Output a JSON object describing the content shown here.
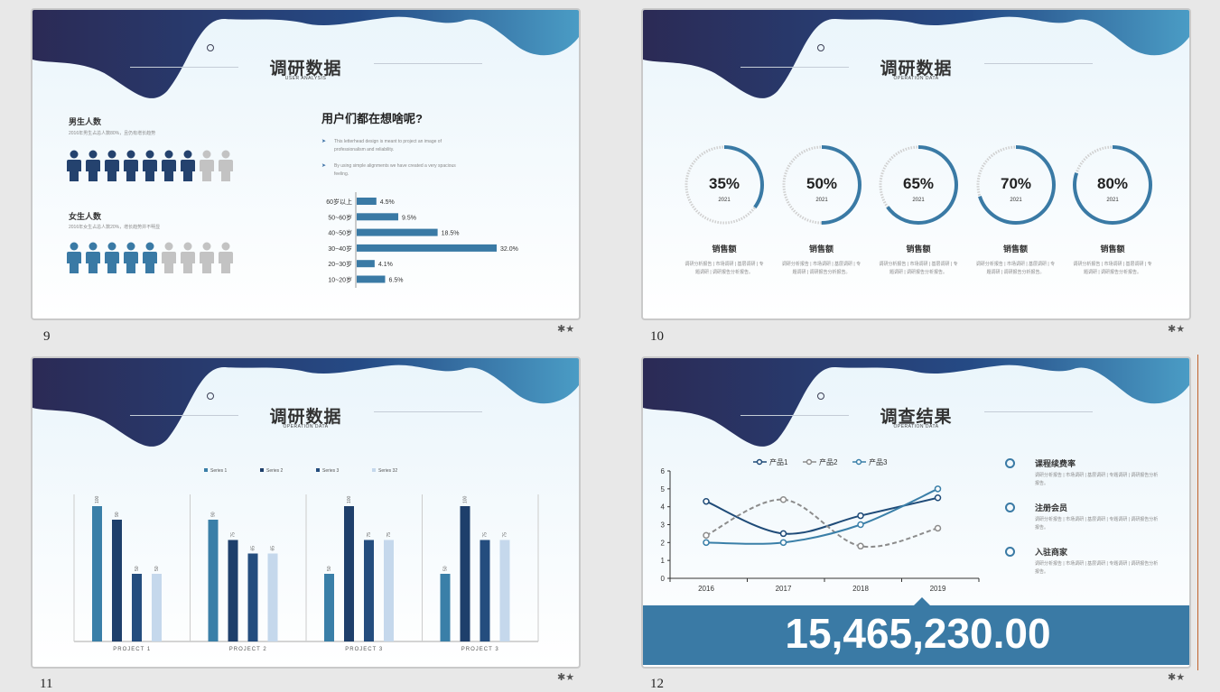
{
  "slide9": {
    "number": "9",
    "title": "调研数据",
    "subtitle": "USER ANALYSIS",
    "male": {
      "label": "男生人数",
      "desc": "2016年男生占总人数80%，且仍有增长趋势",
      "filled": 7,
      "total": 9
    },
    "female": {
      "label": "女生人数",
      "desc": "2016年女生占总人数20%，增长趋势并不明显",
      "filled": 5,
      "total": 9
    },
    "question": "用户们都在想啥呢?",
    "bullets": [
      "This letterhead design is meant to project an image of professionalism and reliability.",
      "By using simple alignments we have created a very spacious feeling."
    ],
    "chart_data": {
      "type": "bar",
      "orientation": "horizontal",
      "categories": [
        "60岁以上",
        "50~60岁",
        "40~50岁",
        "30~40岁",
        "20~30岁",
        "10~20岁"
      ],
      "values": [
        4.5,
        9.5,
        18.5,
        32.0,
        4.1,
        6.5
      ],
      "labels": [
        "4.5%",
        "9.5%",
        "18.5%",
        "32.0%",
        "4.1%",
        "6.5%"
      ],
      "color": "#3a7aa5"
    }
  },
  "slide10": {
    "number": "10",
    "title": "调研数据",
    "subtitle": "OPERATION DATA",
    "rings": [
      {
        "value": 35,
        "label": "35%",
        "year": "2021",
        "name": "销售额",
        "desc": "调研分析报告 | 市场调研 | 基层调研 | 专题调研 | 调研报告分析报告。"
      },
      {
        "value": 50,
        "label": "50%",
        "year": "2021",
        "name": "销售额",
        "desc": "调研分析报告 | 市场调研 | 基层调研 | 专题调研 | 调研报告分析报告。"
      },
      {
        "value": 65,
        "label": "65%",
        "year": "2021",
        "name": "销售额",
        "desc": "调研分析报告 | 市场调研 | 基层调研 | 专题调研 | 调研报告分析报告。"
      },
      {
        "value": 70,
        "label": "70%",
        "year": "2021",
        "name": "销售额",
        "desc": "调研分析报告 | 市场调研 | 基层调研 | 专题调研 | 调研报告分析报告。"
      },
      {
        "value": 80,
        "label": "80%",
        "year": "2021",
        "name": "销售额",
        "desc": "调研分析报告 | 市场调研 | 基层调研 | 专题调研 | 调研报告分析报告。"
      }
    ]
  },
  "slide11": {
    "number": "11",
    "title": "调研数据",
    "subtitle": "OPERATION DATA",
    "chart_data": {
      "type": "bar",
      "groups": [
        "PROJECT 1",
        "PROJECT 2",
        "PROJECT 3",
        "PROJECT 3"
      ],
      "series": [
        {
          "name": "Series 1",
          "color": "#3a7fa8",
          "values": [
            100,
            90,
            50,
            50
          ]
        },
        {
          "name": "Series 2",
          "color": "#1e3f6b",
          "values": [
            90,
            75,
            100,
            100
          ]
        },
        {
          "name": "Series 3",
          "color": "#244d7e",
          "values": [
            50,
            65,
            75,
            75
          ]
        },
        {
          "name": "Series 32",
          "color": "#c5d8ec",
          "values": [
            50,
            65,
            75,
            75
          ]
        }
      ],
      "ylim": [
        0,
        100
      ]
    }
  },
  "slide12": {
    "number": "12",
    "title": "调查结果",
    "subtitle": "OPERATION DATA",
    "chart_data": {
      "type": "line",
      "x": [
        "2016",
        "2017",
        "2018",
        "2019"
      ],
      "ylim": [
        0,
        6
      ],
      "yticks": [
        "0",
        "1",
        "2",
        "3",
        "4",
        "5",
        "6"
      ],
      "series": [
        {
          "name": "产品1",
          "color": "#1f4b78",
          "dash": false,
          "values": [
            4.3,
            2.5,
            3.5,
            4.5
          ]
        },
        {
          "name": "产品2",
          "color": "#8c8c8c",
          "dash": true,
          "values": [
            2.4,
            4.4,
            1.8,
            2.8
          ]
        },
        {
          "name": "产品3",
          "color": "#3a7fa8",
          "dash": false,
          "values": [
            2.0,
            2.0,
            3.0,
            5.0
          ]
        }
      ]
    },
    "items": [
      {
        "label": "课程续费率",
        "desc": "调研分析报告 | 市场调研 | 基层调研 | 专题调研 | 调研报告分析报告。"
      },
      {
        "label": "注册会员",
        "desc": "调研分析报告 | 市场调研 | 基层调研 | 专题调研 | 调研报告分析报告。"
      },
      {
        "label": "入驻商家",
        "desc": "调研分析报告 | 市场调研 | 基层调研 | 专题调研 | 调研报告分析报告。"
      }
    ],
    "big_number": "15,465,230.00"
  },
  "colors": {
    "dark": "#2b2a55",
    "mid": "#2a4f86",
    "light": "#4a9cc5",
    "accent": "#3a7aa5",
    "selection": "#c0622c"
  }
}
